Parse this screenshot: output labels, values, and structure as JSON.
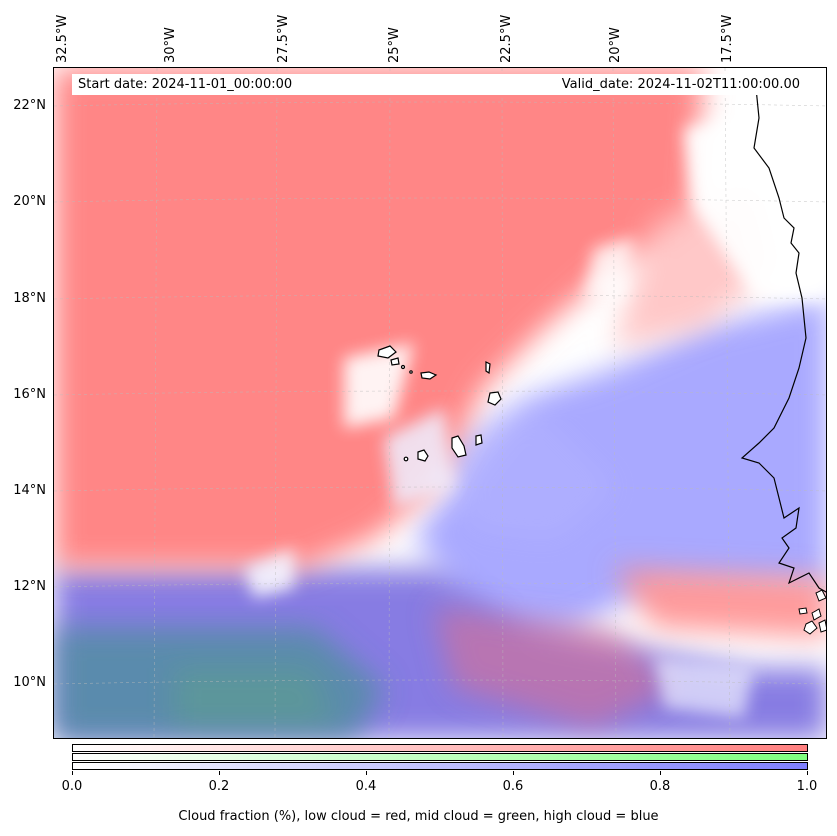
{
  "map": {
    "start_date": "Start date: 2024-11-01_00:00:00",
    "valid_date": "Valid_date: 2024-11-02T11:00:00.00",
    "lon_labels": [
      "32.5°W",
      "30°W",
      "27.5°W",
      "25°W",
      "22.5°W",
      "20°W",
      "17.5°W"
    ],
    "lat_labels": [
      "22°N",
      "20°N",
      "18°N",
      "16°N",
      "14°N",
      "12°N",
      "10°N"
    ],
    "layers": {
      "low_cloud": "#ff8080",
      "mid_cloud": "#80ff80",
      "high_cloud": "#8080ff",
      "coast": "#000000"
    }
  },
  "colorbar": {
    "ticks": [
      "0.0",
      "0.2",
      "0.4",
      "0.6",
      "0.8",
      "1.0"
    ],
    "label": "Cloud fraction (%), low cloud = red, mid cloud = green, high cloud = blue",
    "colors": {
      "low": "#ff7f7f",
      "mid": "#7fff7f",
      "high": "#7f7fff"
    }
  }
}
